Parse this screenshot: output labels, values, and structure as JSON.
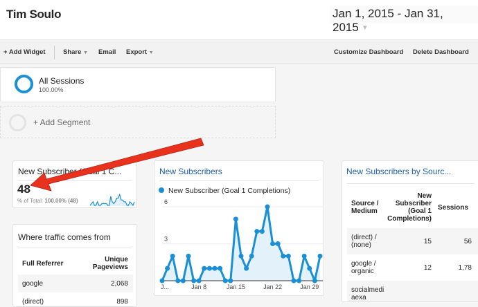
{
  "header": {
    "title": "Tim Soulo",
    "date_range": "Jan 1, 2015 - Jan 31, 2015"
  },
  "toolbar": {
    "add_widget": "+ Add Widget",
    "share": "Share",
    "email": "Email",
    "export": "Export",
    "customize": "Customize Dashboard",
    "delete": "Delete Dashboard"
  },
  "segments": {
    "active_name": "All Sessions",
    "active_pct": "100.00%",
    "add": "+ Add Segment"
  },
  "colors": {
    "accent": "#1a8fd6",
    "arrow": "#e8321e"
  },
  "scorecard": {
    "title": "New Subscriber (Goal 1 C...",
    "value": "48",
    "total_label": "% of Total:",
    "total_value": "100.00% (48)"
  },
  "traffic": {
    "title": "Where traffic comes from",
    "headers": [
      "Full Referrer",
      "Unique Pageviews"
    ],
    "rows": [
      [
        "google",
        "2,068"
      ],
      [
        "(direct)",
        "898"
      ]
    ]
  },
  "chart_data": {
    "type": "area",
    "title": "New Subscribers",
    "series": [
      {
        "name": "New Subscriber (Goal 1 Completions)",
        "values": [
          0,
          1,
          2,
          0,
          0,
          2,
          0,
          0,
          1,
          1,
          1,
          1,
          0,
          0,
          5,
          2,
          1,
          2,
          4,
          4,
          6,
          3,
          3,
          2,
          2,
          0,
          0,
          2,
          1,
          0,
          2
        ]
      }
    ],
    "x": [
      "Jan 1",
      "Jan 2",
      "Jan 3",
      "Jan 4",
      "Jan 5",
      "Jan 6",
      "Jan 7",
      "Jan 8",
      "Jan 9",
      "Jan 10",
      "Jan 11",
      "Jan 12",
      "Jan 13",
      "Jan 14",
      "Jan 15",
      "Jan 16",
      "Jan 17",
      "Jan 18",
      "Jan 19",
      "Jan 20",
      "Jan 21",
      "Jan 22",
      "Jan 23",
      "Jan 24",
      "Jan 25",
      "Jan 26",
      "Jan 27",
      "Jan 28",
      "Jan 29",
      "Jan 30",
      "Jan 31"
    ],
    "x_tick_labels": [
      "J...",
      "Jan 8",
      "Jan 15",
      "Jan 22",
      "Jan 29"
    ],
    "y_ticks": [
      "3",
      "6"
    ],
    "ylim": [
      0,
      6
    ],
    "grid": true,
    "legend": "top-left"
  },
  "source_table": {
    "title": "New Subscribers by Sourc...",
    "headers": [
      "Source / Medium",
      "New Subscriber (Goal 1 Completions)",
      "Sessions"
    ],
    "rows": [
      [
        "(direct) / (none)",
        "15",
        "56"
      ],
      [
        "google / organic",
        "12",
        "1,78"
      ],
      [
        "socialmediaexa",
        "",
        ""
      ]
    ]
  }
}
